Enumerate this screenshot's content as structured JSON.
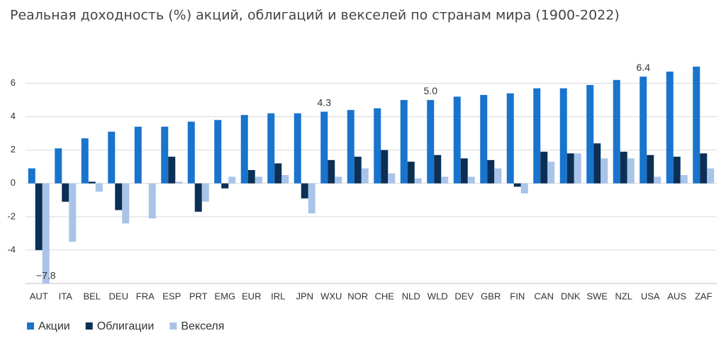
{
  "chart_data": {
    "type": "bar",
    "title": "Реальная доходность (%) акций, облигаций и векселей по странам мира (1900-2022)",
    "categories": [
      "AUT",
      "ITA",
      "BEL",
      "DEU",
      "FRA",
      "ESP",
      "PRT",
      "EMG",
      "EUR",
      "IRL",
      "JPN",
      "WXU",
      "NOR",
      "CHE",
      "NLD",
      "WLD",
      "DEV",
      "GBR",
      "FIN",
      "CAN",
      "DNK",
      "SWE",
      "NZL",
      "USA",
      "AUS",
      "ZAF"
    ],
    "series": [
      {
        "name": "Акции",
        "color": "#1874cd",
        "values": [
          0.9,
          2.1,
          2.7,
          3.1,
          3.4,
          3.4,
          3.7,
          3.8,
          4.1,
          4.2,
          4.2,
          4.3,
          4.4,
          4.5,
          5.0,
          5.0,
          5.2,
          5.3,
          5.4,
          5.7,
          5.7,
          5.9,
          6.2,
          6.4,
          6.7,
          7.0
        ],
        "value_labels": [
          null,
          null,
          null,
          null,
          null,
          null,
          null,
          null,
          null,
          null,
          null,
          "4.3",
          null,
          null,
          null,
          "5.0",
          null,
          null,
          null,
          null,
          null,
          null,
          null,
          "6.4",
          null,
          null
        ]
      },
      {
        "name": "Облигации",
        "color": "#0b2f55",
        "values": [
          -4.0,
          -1.1,
          0.1,
          -1.6,
          0.0,
          1.6,
          -1.7,
          -0.3,
          0.8,
          1.2,
          -0.9,
          1.4,
          1.6,
          2.0,
          1.3,
          1.7,
          1.5,
          1.4,
          -0.2,
          1.9,
          1.8,
          2.4,
          1.9,
          1.7,
          1.6,
          1.8
        ]
      },
      {
        "name": "Векселя",
        "color": "#a9c4e8",
        "values": [
          -7.8,
          -3.5,
          -0.5,
          -2.4,
          -2.1,
          0.1,
          -1.1,
          0.4,
          0.4,
          0.5,
          -1.8,
          0.4,
          0.9,
          0.6,
          0.3,
          0.4,
          0.4,
          0.9,
          -0.6,
          1.3,
          1.8,
          1.5,
          1.5,
          0.4,
          0.5,
          0.9
        ],
        "value_labels": [
          "−7.8",
          null,
          null,
          null,
          null,
          null,
          null,
          null,
          null,
          null,
          null,
          null,
          null,
          null,
          null,
          null,
          null,
          null,
          null,
          null,
          null,
          null,
          null,
          null,
          null,
          null
        ]
      }
    ],
    "ylim": [
      -6,
      7
    ],
    "yticks": [
      -4,
      -2,
      0,
      2,
      4,
      6
    ],
    "grid": true,
    "legend": "bottom-left"
  }
}
